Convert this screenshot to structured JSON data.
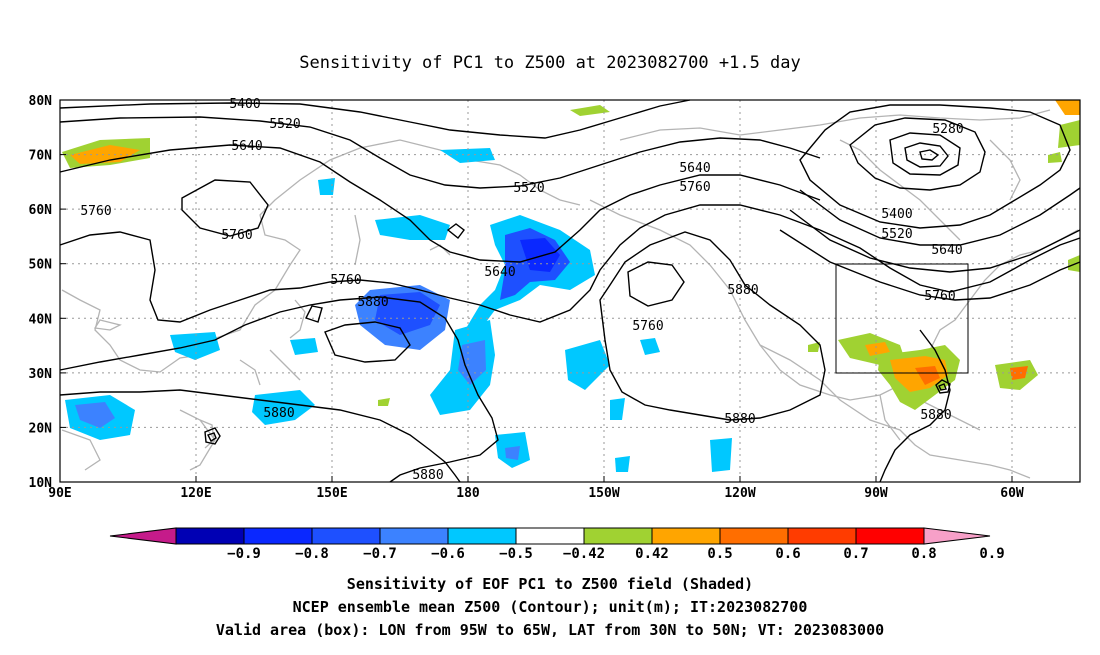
{
  "title": "Sensitivity of PC1 to Z500 at 2023082700 +1.5 day",
  "lat_labels": [
    "80N",
    "70N",
    "60N",
    "50N",
    "40N",
    "30N",
    "20N",
    "10N"
  ],
  "lon_labels": [
    "90E",
    "120E",
    "150E",
    "180",
    "150W",
    "120W",
    "90W",
    "60W"
  ],
  "contour_labels": [
    {
      "text": "5400"
    },
    {
      "text": "5520"
    },
    {
      "text": "5640"
    },
    {
      "text": "5760"
    },
    {
      "text": "5760"
    },
    {
      "text": "5520"
    },
    {
      "text": "5640"
    },
    {
      "text": "5760"
    },
    {
      "text": "5280"
    },
    {
      "text": "5400"
    },
    {
      "text": "5520"
    },
    {
      "text": "5640"
    },
    {
      "text": "5760"
    },
    {
      "text": "5760"
    },
    {
      "text": "5880"
    },
    {
      "text": "5640"
    },
    {
      "text": "5880"
    },
    {
      "text": "5760"
    },
    {
      "text": "5880"
    },
    {
      "text": "5880"
    },
    {
      "text": "5880"
    },
    {
      "text": "5880"
    }
  ],
  "colorbar": {
    "colors": [
      "#c51b8a",
      "#0000b4",
      "#0a28ff",
      "#1e50ff",
      "#3c82ff",
      "#00c8ff",
      "#ffffff",
      "#a0d232",
      "#ffa500",
      "#ff6e00",
      "#ff3c00",
      "#ff0000",
      "#f7a0c8"
    ],
    "labels": [
      "-0.9",
      "-0.8",
      "-0.7",
      "-0.6",
      "-0.5",
      "-0.42",
      "0.42",
      "0.5",
      "0.6",
      "0.7",
      "0.8",
      "0.9"
    ]
  },
  "caption": {
    "line1": "Sensitivity of EOF PC1 to Z500 field (Shaded)",
    "line2": "NCEP ensemble mean Z500 (Contour); unit(m); IT:2023082700",
    "line3": "Valid area (box): LON from 95W to 65W, LAT from 30N to 50N; VT: 2023083000"
  },
  "valid_box": {
    "lon_w": "95W",
    "lon_e": "65W",
    "lat_s": "30N",
    "lat_n": "50N"
  }
}
